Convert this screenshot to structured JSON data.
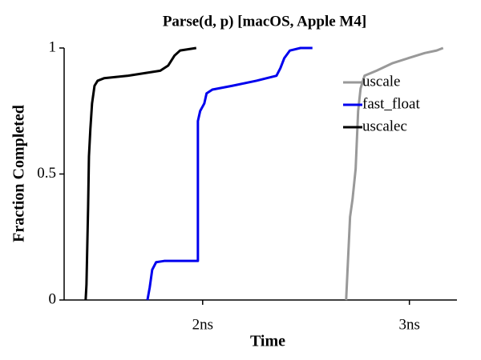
{
  "chart_data": {
    "type": "line",
    "title": "Parse(d, p) [macOS, Apple M4]",
    "x_label": "Time",
    "y_label": "Fraction Completed",
    "xlim": [
      1.33,
      3.23
    ],
    "ylim": [
      0,
      1
    ],
    "xticks": [
      {
        "value": 2,
        "label": "2ns"
      },
      {
        "value": 3,
        "label": "3ns"
      }
    ],
    "yticks": [
      0,
      0.5,
      1
    ],
    "grid": false,
    "legend": "upper right",
    "series": [
      {
        "name": "uscale",
        "color": "#999999",
        "x": [
          2.694,
          2.702,
          2.713,
          2.725,
          2.74,
          2.752,
          2.764,
          2.783,
          2.841,
          2.919,
          2.996,
          3.074,
          3.132,
          3.163
        ],
        "values": [
          0,
          0.14,
          0.33,
          0.4,
          0.52,
          0.75,
          0.84,
          0.89,
          0.91,
          0.94,
          0.96,
          0.98,
          0.99,
          1
        ]
      },
      {
        "name": "fast_float",
        "color": "#0000ee",
        "x": [
          1.733,
          1.744,
          1.756,
          1.775,
          1.814,
          1.977,
          1.977,
          1.988,
          2.008,
          2.019,
          2.047,
          2.143,
          2.26,
          2.357,
          2.376,
          2.395,
          2.422,
          2.473,
          2.531
        ],
        "values": [
          0,
          0.05,
          0.12,
          0.15,
          0.155,
          0.155,
          0.71,
          0.75,
          0.78,
          0.82,
          0.835,
          0.85,
          0.87,
          0.89,
          0.92,
          0.96,
          0.99,
          1,
          1
        ]
      },
      {
        "name": "uscalec",
        "color": "#000000",
        "x": [
          1.434,
          1.438,
          1.446,
          1.45,
          1.457,
          1.465,
          1.477,
          1.492,
          1.523,
          1.64,
          1.795,
          1.833,
          1.864,
          1.891,
          1.969
        ],
        "values": [
          0,
          0.06,
          0.37,
          0.57,
          0.68,
          0.78,
          0.85,
          0.87,
          0.88,
          0.89,
          0.91,
          0.93,
          0.97,
          0.99,
          1
        ]
      }
    ]
  }
}
